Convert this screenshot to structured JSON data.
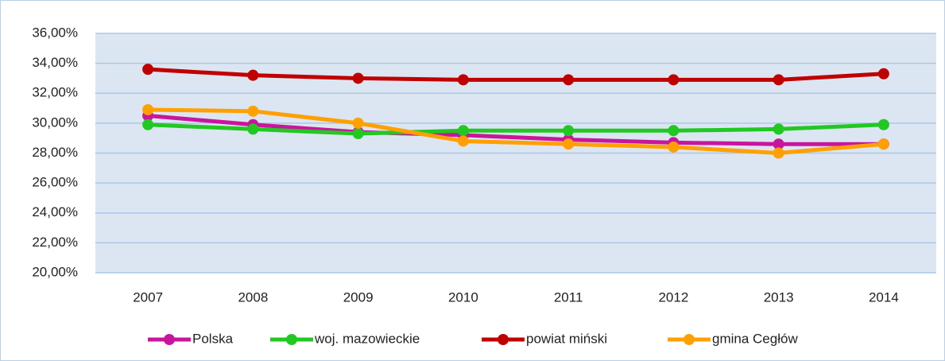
{
  "chart_data": {
    "type": "line",
    "categories": [
      "2007",
      "2008",
      "2009",
      "2010",
      "2011",
      "2012",
      "2013",
      "2014"
    ],
    "series": [
      {
        "name": "Polska",
        "color": "#c8169c",
        "values": [
          30.5,
          29.9,
          29.4,
          29.2,
          28.9,
          28.7,
          28.6,
          28.6
        ]
      },
      {
        "name": "woj. mazowieckie",
        "color": "#22c822",
        "values": [
          29.9,
          29.6,
          29.3,
          29.5,
          29.5,
          29.5,
          29.6,
          29.9
        ]
      },
      {
        "name": "powiat miński",
        "color": "#c00000",
        "values": [
          33.6,
          33.2,
          33.0,
          32.9,
          32.9,
          32.9,
          32.9,
          33.3
        ]
      },
      {
        "name": "gmina Cegłów",
        "color": "#ffa000",
        "values": [
          30.9,
          30.8,
          30.0,
          28.8,
          28.6,
          28.4,
          28.0,
          28.6
        ]
      }
    ],
    "ylim": [
      20,
      36
    ],
    "yticks": [
      {
        "value": 20,
        "label": "20,00%"
      },
      {
        "value": 22,
        "label": "22,00%"
      },
      {
        "value": 24,
        "label": "24,00%"
      },
      {
        "value": 26,
        "label": "26,00%"
      },
      {
        "value": 28,
        "label": "28,00%"
      },
      {
        "value": 30,
        "label": "30,00%"
      },
      {
        "value": 32,
        "label": "32,00%"
      },
      {
        "value": 34,
        "label": "34,00%"
      },
      {
        "value": 36,
        "label": "36,00%"
      }
    ],
    "grid": true,
    "legend": "bottom"
  }
}
